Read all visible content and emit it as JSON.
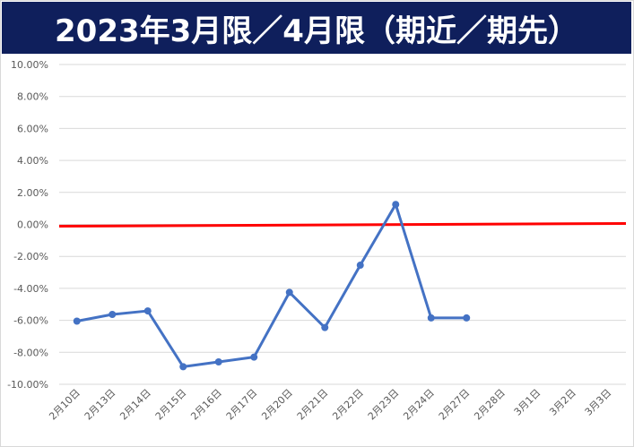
{
  "title": "2023年3月限／4月限（期近／期先）",
  "chart_data": {
    "type": "line",
    "title": "2023年3月限／4月限（期近／期先）",
    "xlabel": "",
    "ylabel": "",
    "categories": [
      "2月10日",
      "2月13日",
      "2月14日",
      "2月15日",
      "2月16日",
      "2月17日",
      "2月20日",
      "2月21日",
      "2月22日",
      "2月23日",
      "2月24日",
      "2月27日",
      "2月28日",
      "3月1日",
      "3月2日",
      "3月3日"
    ],
    "yticks": [
      "10.00%",
      "8.00%",
      "6.00%",
      "4.00%",
      "2.00%",
      "0.00%",
      "-2.00%",
      "-4.00%",
      "-6.00%",
      "-8.00%",
      "-10.00%"
    ],
    "ylim": [
      -0.1,
      0.1
    ],
    "series": [
      {
        "name": "",
        "color": "#4472c4",
        "values": [
          -0.0605,
          -0.0563,
          -0.0541,
          -0.089,
          -0.086,
          -0.083,
          -0.0425,
          -0.0645,
          -0.0255,
          0.0125,
          -0.0585,
          -0.0585,
          null,
          null,
          null,
          null
        ]
      }
    ],
    "reference_line": {
      "value": 0.0,
      "color": "#ff0000"
    },
    "grid": true,
    "legend": "none"
  }
}
